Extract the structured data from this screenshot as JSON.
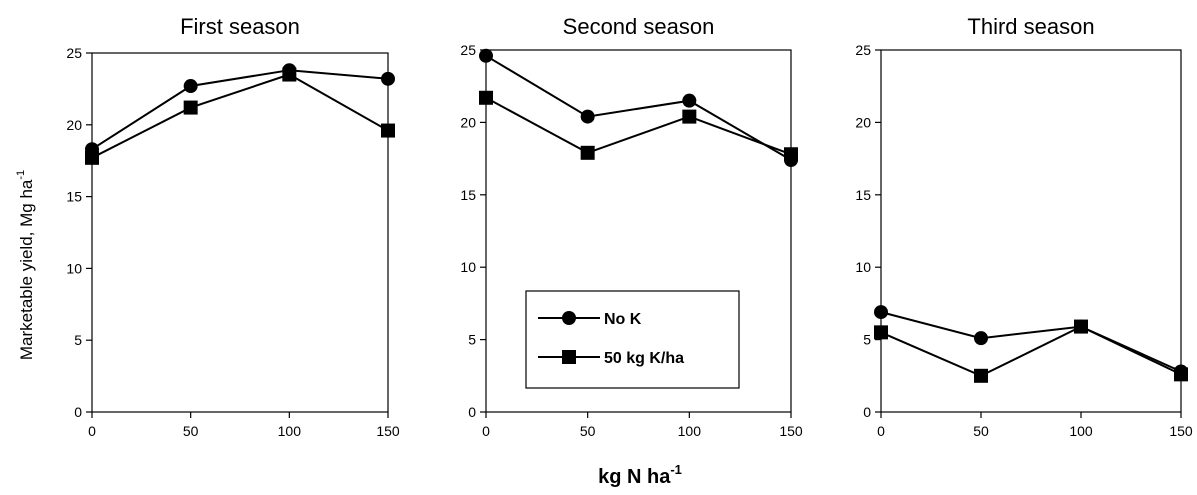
{
  "shared": {
    "ylabel": "Marketable yield, Mg ha",
    "ylabel_sup": "-1",
    "xlabel": "kg N ha",
    "xlabel_sup": "-1",
    "legend": [
      {
        "name": "No K",
        "marker": "circle"
      },
      {
        "name": "50 kg K/ha",
        "marker": "square"
      }
    ]
  },
  "chart_data": [
    {
      "type": "line",
      "title": "First season",
      "x": [
        0,
        50,
        100,
        150
      ],
      "xlim": [
        0,
        150
      ],
      "ylim": [
        0,
        25
      ],
      "xticks": [
        "0",
        "50",
        "100",
        "150"
      ],
      "yticks": [
        "0",
        "5",
        "10",
        "15",
        "20",
        "25"
      ],
      "series": [
        {
          "name": "No K",
          "marker": "circle",
          "values": [
            18.3,
            22.7,
            23.8,
            23.2
          ]
        },
        {
          "name": "50 kg K/ha",
          "marker": "square",
          "values": [
            17.7,
            21.2,
            23.5,
            19.6
          ]
        }
      ]
    },
    {
      "type": "line",
      "title": "Second season",
      "x": [
        0,
        50,
        100,
        150
      ],
      "xlim": [
        0,
        150
      ],
      "ylim": [
        0,
        25
      ],
      "xticks": [
        "0",
        "50",
        "100",
        "150"
      ],
      "yticks": [
        "0",
        "5",
        "10",
        "15",
        "20",
        "25"
      ],
      "series": [
        {
          "name": "No K",
          "marker": "circle",
          "values": [
            24.6,
            20.4,
            21.5,
            17.4
          ]
        },
        {
          "name": "50 kg K/ha",
          "marker": "square",
          "values": [
            21.7,
            17.9,
            20.4,
            17.8
          ]
        }
      ]
    },
    {
      "type": "line",
      "title": "Third season",
      "x": [
        0,
        50,
        100,
        150
      ],
      "xlim": [
        0,
        150
      ],
      "ylim": [
        0,
        25
      ],
      "xticks": [
        "0",
        "50",
        "100",
        "150"
      ],
      "yticks": [
        "0",
        "5",
        "10",
        "15",
        "20",
        "25"
      ],
      "series": [
        {
          "name": "No K",
          "marker": "circle",
          "values": [
            6.9,
            5.1,
            5.9,
            2.8
          ]
        },
        {
          "name": "50 kg K/ha",
          "marker": "square",
          "values": [
            5.5,
            2.5,
            5.9,
            2.6
          ]
        }
      ]
    }
  ]
}
